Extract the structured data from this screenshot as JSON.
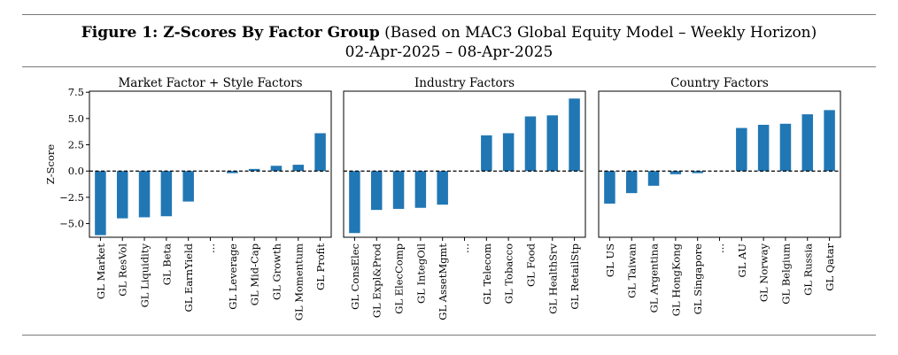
{
  "figure": {
    "title_bold": "Figure 1: Z-Scores By Factor Group",
    "title_rest": " (Based on MAC3 Global Equity Model – Weekly Horizon)",
    "date_range": "02-Apr-2025 – 08-Apr-2025"
  },
  "colors": {
    "bar": "#2177b4",
    "zero_line": "#000000",
    "frame": "#000000"
  },
  "chart_data": [
    {
      "type": "bar",
      "title": "Market Factor + Style Factors",
      "ylabel": "Z-Score",
      "ylim": [
        -6.3,
        7.6
      ],
      "yticks": [
        -5.0,
        -2.5,
        0.0,
        2.5,
        5.0,
        7.5
      ],
      "ytick_labels": [
        "−5.0",
        "−2.5",
        "0.0",
        "2.5",
        "5.0",
        "7.5"
      ],
      "zero_line": "dashed",
      "categories": [
        "GL Market",
        "GL ResVol",
        "GL Liquidity",
        "GL Beta",
        "GL EarnYield",
        "...",
        "GL Leverage",
        "GL Mid-Cap",
        "GL Growth",
        "GL Momentum",
        "GL Profit"
      ],
      "values": [
        -6.1,
        -4.5,
        -4.4,
        -4.3,
        -2.9,
        null,
        -0.2,
        0.2,
        0.5,
        0.6,
        3.6
      ]
    },
    {
      "type": "bar",
      "title": "Industry Factors",
      "ylim": [
        -6.3,
        7.6
      ],
      "zero_line": "dashed",
      "categories": [
        "GL ConsElec",
        "GL Expl&Prod",
        "GL ElecComp",
        "GL IntegOil",
        "GL AssetMgmt",
        "...",
        "GL Telecom",
        "GL Tobacco",
        "GL Food",
        "GL HealthSrv",
        "GL RetailStp"
      ],
      "values": [
        -5.9,
        -3.7,
        -3.6,
        -3.5,
        -3.2,
        null,
        3.4,
        3.6,
        5.2,
        5.3,
        6.9
      ]
    },
    {
      "type": "bar",
      "title": "Country Factors",
      "ylim": [
        -6.3,
        7.6
      ],
      "zero_line": "dashed",
      "categories": [
        "GL US",
        "GL Taiwan",
        "GL Argentina",
        "GL HongKong",
        "GL Singapore",
        "...",
        "GL AU",
        "GL Norway",
        "GL Belgium",
        "GL Russia",
        "GL Qatar"
      ],
      "values": [
        -3.1,
        -2.1,
        -1.4,
        -0.3,
        -0.2,
        null,
        4.1,
        4.4,
        4.5,
        5.4,
        5.8
      ]
    }
  ]
}
